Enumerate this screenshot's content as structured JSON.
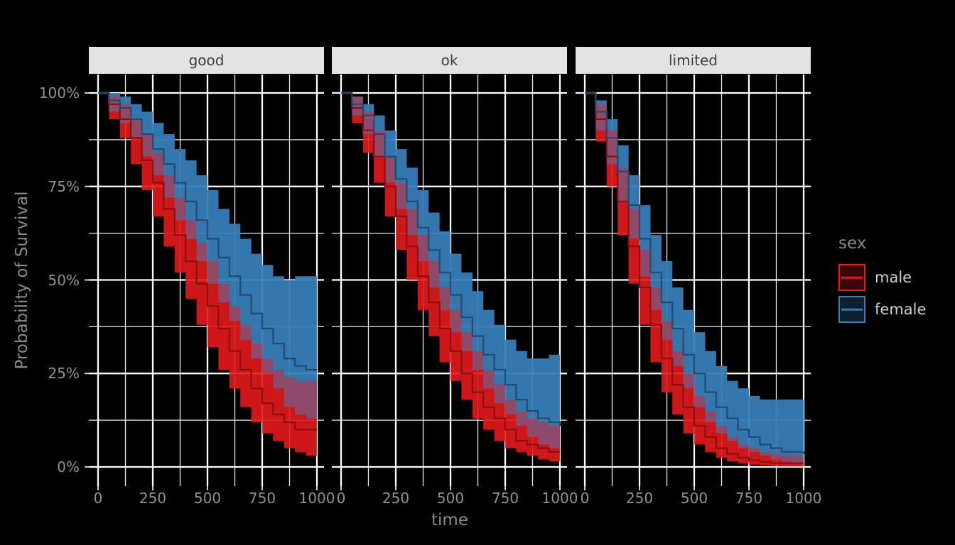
{
  "chart_data": {
    "type": "area",
    "subtype": "kaplan-meier-survival-curves-with-confidence-bands",
    "title": "",
    "xlabel": "time",
    "ylabel": "Probability of Survival",
    "xlim": [
      0,
      1000
    ],
    "ylim": [
      0,
      1
    ],
    "x_ticks": [
      0,
      250,
      500,
      750,
      1000
    ],
    "x_tick_labels": [
      "0",
      "250",
      "500",
      "750",
      "1000"
    ],
    "y_ticks": [
      0,
      0.25,
      0.5,
      0.75,
      1
    ],
    "y_tick_labels": [
      "0%",
      "25%",
      "50%",
      "75%",
      "100%"
    ],
    "x_minor_ticks": [
      125,
      375,
      625,
      875
    ],
    "y_minor_ticks": [
      0.125,
      0.375,
      0.625,
      0.875
    ],
    "grid": "white major and minor gridlines on transparent panels",
    "strip_background": "#E3E3E3",
    "background": "#000000",
    "legend": {
      "title": "sex",
      "position": "right",
      "entries": [
        {
          "label": "male",
          "color": "#E41A1C"
        },
        {
          "label": "female",
          "color": "#377EB8"
        }
      ]
    },
    "facets": [
      {
        "label": "good",
        "series": [
          {
            "name": "male",
            "color": "#E41A1C",
            "point_format": "[time, estimate, lower_ci, upper_ci]",
            "points": [
              [
                0,
                1,
                1,
                1
              ],
              [
                50,
                0.97,
                0.93,
                0.99
              ],
              [
                100,
                0.93,
                0.88,
                0.97
              ],
              [
                150,
                0.88,
                0.81,
                0.93
              ],
              [
                200,
                0.82,
                0.74,
                0.89
              ],
              [
                250,
                0.76,
                0.67,
                0.84
              ],
              [
                300,
                0.69,
                0.59,
                0.78
              ],
              [
                350,
                0.62,
                0.52,
                0.72
              ],
              [
                400,
                0.55,
                0.45,
                0.66
              ],
              [
                450,
                0.49,
                0.38,
                0.6
              ],
              [
                500,
                0.43,
                0.32,
                0.55
              ],
              [
                550,
                0.37,
                0.26,
                0.49
              ],
              [
                600,
                0.31,
                0.21,
                0.43
              ],
              [
                650,
                0.26,
                0.16,
                0.38
              ],
              [
                700,
                0.21,
                0.12,
                0.33
              ],
              [
                750,
                0.17,
                0.09,
                0.29
              ],
              [
                800,
                0.14,
                0.07,
                0.26
              ],
              [
                850,
                0.12,
                0.05,
                0.24
              ],
              [
                900,
                0.1,
                0.04,
                0.23
              ],
              [
                950,
                0.1,
                0.03,
                0.23
              ],
              [
                1000,
                0.1,
                0.03,
                0.23
              ]
            ]
          },
          {
            "name": "female",
            "color": "#377EB8",
            "point_format": "[time, estimate, lower_ci, upper_ci]",
            "points": [
              [
                0,
                1,
                1,
                1
              ],
              [
                50,
                0.98,
                0.95,
                1
              ],
              [
                100,
                0.96,
                0.92,
                0.99
              ],
              [
                150,
                0.93,
                0.88,
                0.97
              ],
              [
                200,
                0.89,
                0.83,
                0.95
              ],
              [
                250,
                0.85,
                0.78,
                0.92
              ],
              [
                300,
                0.81,
                0.72,
                0.89
              ],
              [
                350,
                0.76,
                0.66,
                0.85
              ],
              [
                400,
                0.71,
                0.61,
                0.82
              ],
              [
                450,
                0.66,
                0.55,
                0.78
              ],
              [
                500,
                0.61,
                0.49,
                0.74
              ],
              [
                550,
                0.56,
                0.44,
                0.69
              ],
              [
                600,
                0.51,
                0.39,
                0.65
              ],
              [
                650,
                0.46,
                0.34,
                0.61
              ],
              [
                700,
                0.41,
                0.29,
                0.57
              ],
              [
                750,
                0.37,
                0.25,
                0.54
              ],
              [
                800,
                0.33,
                0.21,
                0.51
              ],
              [
                850,
                0.29,
                0.16,
                0.5
              ],
              [
                900,
                0.27,
                0.14,
                0.51
              ],
              [
                950,
                0.26,
                0.13,
                0.51
              ],
              [
                1000,
                0.26,
                0.12,
                0.51
              ]
            ]
          }
        ]
      },
      {
        "label": "ok",
        "series": [
          {
            "name": "male",
            "color": "#E41A1C",
            "point_format": "[time, estimate, lower_ci, upper_ci]",
            "points": [
              [
                0,
                1,
                1,
                1
              ],
              [
                50,
                0.96,
                0.92,
                0.99
              ],
              [
                100,
                0.9,
                0.84,
                0.95
              ],
              [
                150,
                0.83,
                0.76,
                0.9
              ],
              [
                200,
                0.75,
                0.67,
                0.83
              ],
              [
                250,
                0.67,
                0.58,
                0.76
              ],
              [
                300,
                0.59,
                0.5,
                0.69
              ],
              [
                350,
                0.51,
                0.42,
                0.62
              ],
              [
                400,
                0.44,
                0.35,
                0.55
              ],
              [
                450,
                0.37,
                0.28,
                0.48
              ],
              [
                500,
                0.31,
                0.23,
                0.42
              ],
              [
                550,
                0.25,
                0.18,
                0.36
              ],
              [
                600,
                0.2,
                0.13,
                0.31
              ],
              [
                650,
                0.16,
                0.1,
                0.26
              ],
              [
                700,
                0.13,
                0.07,
                0.22
              ],
              [
                750,
                0.1,
                0.05,
                0.18
              ],
              [
                800,
                0.07,
                0.04,
                0.15
              ],
              [
                850,
                0.06,
                0.03,
                0.13
              ],
              [
                900,
                0.05,
                0.02,
                0.12
              ],
              [
                950,
                0.04,
                0.015,
                0.11
              ],
              [
                1000,
                0.04,
                0.015,
                0.11
              ]
            ]
          },
          {
            "name": "female",
            "color": "#377EB8",
            "point_format": "[time, estimate, lower_ci, upper_ci]",
            "points": [
              [
                0,
                1,
                1,
                1
              ],
              [
                50,
                0.97,
                0.94,
                0.99
              ],
              [
                100,
                0.94,
                0.89,
                0.97
              ],
              [
                150,
                0.89,
                0.83,
                0.94
              ],
              [
                200,
                0.83,
                0.76,
                0.9
              ],
              [
                250,
                0.77,
                0.69,
                0.85
              ],
              [
                300,
                0.71,
                0.62,
                0.8
              ],
              [
                350,
                0.64,
                0.55,
                0.74
              ],
              [
                400,
                0.58,
                0.48,
                0.68
              ],
              [
                450,
                0.52,
                0.42,
                0.63
              ],
              [
                500,
                0.46,
                0.36,
                0.57
              ],
              [
                550,
                0.4,
                0.31,
                0.52
              ],
              [
                600,
                0.35,
                0.26,
                0.47
              ],
              [
                650,
                0.3,
                0.21,
                0.42
              ],
              [
                700,
                0.26,
                0.17,
                0.38
              ],
              [
                750,
                0.22,
                0.14,
                0.34
              ],
              [
                800,
                0.18,
                0.11,
                0.31
              ],
              [
                850,
                0.15,
                0.08,
                0.29
              ],
              [
                900,
                0.13,
                0.06,
                0.29
              ],
              [
                950,
                0.12,
                0.05,
                0.3
              ],
              [
                1000,
                0.11,
                0.04,
                0.3
              ]
            ]
          }
        ]
      },
      {
        "label": "limited",
        "series": [
          {
            "name": "male",
            "color": "#E41A1C",
            "point_format": "[time, estimate, lower_ci, upper_ci]",
            "points": [
              [
                0,
                1,
                1,
                1
              ],
              [
                50,
                0.93,
                0.87,
                0.97
              ],
              [
                100,
                0.83,
                0.75,
                0.9
              ],
              [
                150,
                0.71,
                0.62,
                0.8
              ],
              [
                200,
                0.59,
                0.49,
                0.69
              ],
              [
                250,
                0.48,
                0.38,
                0.58
              ],
              [
                300,
                0.38,
                0.28,
                0.48
              ],
              [
                350,
                0.29,
                0.2,
                0.39
              ],
              [
                400,
                0.22,
                0.14,
                0.31
              ],
              [
                450,
                0.16,
                0.09,
                0.25
              ],
              [
                500,
                0.11,
                0.06,
                0.19
              ],
              [
                550,
                0.08,
                0.04,
                0.15
              ],
              [
                600,
                0.05,
                0.025,
                0.11
              ],
              [
                650,
                0.035,
                0.015,
                0.08
              ],
              [
                700,
                0.025,
                0.01,
                0.06
              ],
              [
                750,
                0.018,
                0.006,
                0.05
              ],
              [
                800,
                0.013,
                0.004,
                0.04
              ],
              [
                850,
                0.01,
                0.003,
                0.035
              ],
              [
                900,
                0.01,
                0.002,
                0.03
              ],
              [
                950,
                0.01,
                0.002,
                0.03
              ],
              [
                1000,
                0.01,
                0.002,
                0.03
              ]
            ]
          },
          {
            "name": "female",
            "color": "#377EB8",
            "point_format": "[time, estimate, lower_ci, upper_ci]",
            "points": [
              [
                0,
                1,
                1,
                1
              ],
              [
                50,
                0.95,
                0.9,
                0.98
              ],
              [
                100,
                0.88,
                0.81,
                0.93
              ],
              [
                150,
                0.79,
                0.71,
                0.86
              ],
              [
                200,
                0.7,
                0.61,
                0.78
              ],
              [
                250,
                0.61,
                0.51,
                0.7
              ],
              [
                300,
                0.52,
                0.42,
                0.62
              ],
              [
                350,
                0.44,
                0.34,
                0.55
              ],
              [
                400,
                0.37,
                0.27,
                0.48
              ],
              [
                450,
                0.3,
                0.21,
                0.42
              ],
              [
                500,
                0.25,
                0.16,
                0.36
              ],
              [
                550,
                0.2,
                0.12,
                0.31
              ],
              [
                600,
                0.16,
                0.09,
                0.27
              ],
              [
                650,
                0.13,
                0.07,
                0.23
              ],
              [
                700,
                0.1,
                0.05,
                0.21
              ],
              [
                750,
                0.08,
                0.04,
                0.19
              ],
              [
                800,
                0.06,
                0.03,
                0.18
              ],
              [
                850,
                0.05,
                0.02,
                0.18
              ],
              [
                900,
                0.04,
                0.015,
                0.18
              ],
              [
                950,
                0.04,
                0.012,
                0.18
              ],
              [
                1000,
                0.035,
                0.01,
                0.18
              ]
            ]
          }
        ]
      }
    ]
  }
}
